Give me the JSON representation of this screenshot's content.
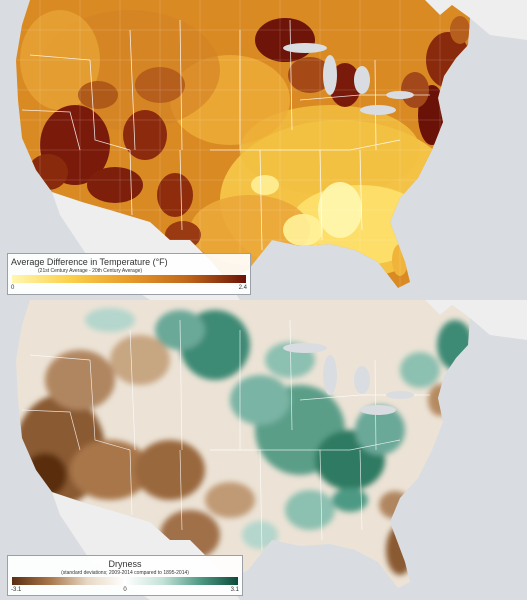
{
  "top_map": {
    "legend": {
      "title": "Average Difference in Temperature (°F)",
      "subtitle": "(21st Century Average - 20th Century Average)",
      "min_label": "0",
      "max_label": "2.4",
      "range": [
        0,
        2.4
      ],
      "colors": [
        "#fff7b0",
        "#fbd04a",
        "#e89a2a",
        "#c0661a",
        "#6b1208"
      ]
    }
  },
  "bottom_map": {
    "legend": {
      "title": "Dryness",
      "subtitle": "(standard deviations; 2009-2014 compared to 1895-2014)",
      "min_label": "-3.1",
      "mid_label": "0",
      "max_label": "3.1",
      "range": [
        -3.1,
        3.1
      ],
      "colors": [
        "#5a2e10",
        "#a8764a",
        "#e8d8c4",
        "#ffffff",
        "#c4e2d8",
        "#4e9a84",
        "#0e4a3a"
      ]
    }
  },
  "colors": {
    "water": "#d9dde1",
    "neighbor_land": "#eeeeee",
    "state_border": "#ffffff"
  }
}
